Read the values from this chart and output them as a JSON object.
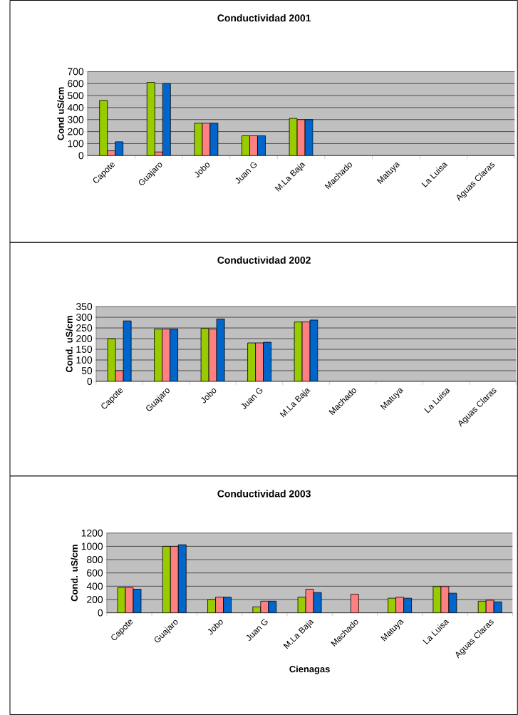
{
  "chart_data": [
    {
      "type": "bar",
      "title": "Conductividad 2001",
      "ylabel": "Cond uS/cm",
      "categories": [
        "Capote",
        "Guajaro",
        "Jobo",
        "Juan G",
        "M.La Baja",
        "Machado",
        "Matuya",
        "La Luisa",
        "Aguas Claras"
      ],
      "series": [
        {
          "color": "#99cc00",
          "values": [
            460,
            610,
            270,
            165,
            310,
            null,
            null,
            null,
            null
          ]
        },
        {
          "color": "#ff8080",
          "values": [
            40,
            30,
            270,
            165,
            300,
            null,
            null,
            null,
            null
          ]
        },
        {
          "color": "#0066cc",
          "values": [
            115,
            600,
            270,
            165,
            300,
            null,
            null,
            null,
            null
          ]
        }
      ],
      "ylim": [
        0,
        700
      ],
      "yticks": [
        0,
        100,
        200,
        300,
        400,
        500,
        600,
        700
      ],
      "grid": "y"
    },
    {
      "type": "bar",
      "title": "Conductividad 2002",
      "ylabel": "Cond. uS/cm",
      "categories": [
        "Capote",
        "Guajaro",
        "Jobo",
        "Juan G",
        "M.La Baja",
        "Machado",
        "Matuya",
        "La Luisa",
        "Aguas Claras"
      ],
      "series": [
        {
          "color": "#99cc00",
          "values": [
            200,
            245,
            248,
            180,
            278,
            null,
            null,
            null,
            null
          ]
        },
        {
          "color": "#ff8080",
          "values": [
            50,
            245,
            245,
            180,
            278,
            null,
            null,
            null,
            null
          ]
        },
        {
          "color": "#0066cc",
          "values": [
            283,
            245,
            292,
            183,
            287,
            null,
            null,
            null,
            null
          ]
        }
      ],
      "ylim": [
        0,
        350
      ],
      "yticks": [
        0,
        50,
        100,
        150,
        200,
        250,
        300,
        350
      ],
      "grid": "y"
    },
    {
      "type": "bar",
      "title": "Conductividad 2003",
      "ylabel": "Cond. uS/cm",
      "xlabel": "Cienagas",
      "categories": [
        "Capote",
        "Guajaro",
        "Jobo",
        "Juan G",
        "M.La Baja",
        "Machado",
        "Matuya",
        "La Luisa",
        "Aguas Claras"
      ],
      "series": [
        {
          "color": "#99cc00",
          "values": [
            380,
            1000,
            200,
            90,
            235,
            null,
            220,
            395,
            175
          ]
        },
        {
          "color": "#ff8080",
          "values": [
            380,
            1000,
            235,
            175,
            355,
            280,
            235,
            395,
            190
          ]
        },
        {
          "color": "#0066cc",
          "values": [
            355,
            1025,
            235,
            175,
            305,
            null,
            220,
            295,
            165
          ]
        }
      ],
      "ylim": [
        0,
        1200
      ],
      "yticks": [
        0,
        200,
        400,
        600,
        800,
        1000,
        1200
      ],
      "grid": "y"
    }
  ]
}
